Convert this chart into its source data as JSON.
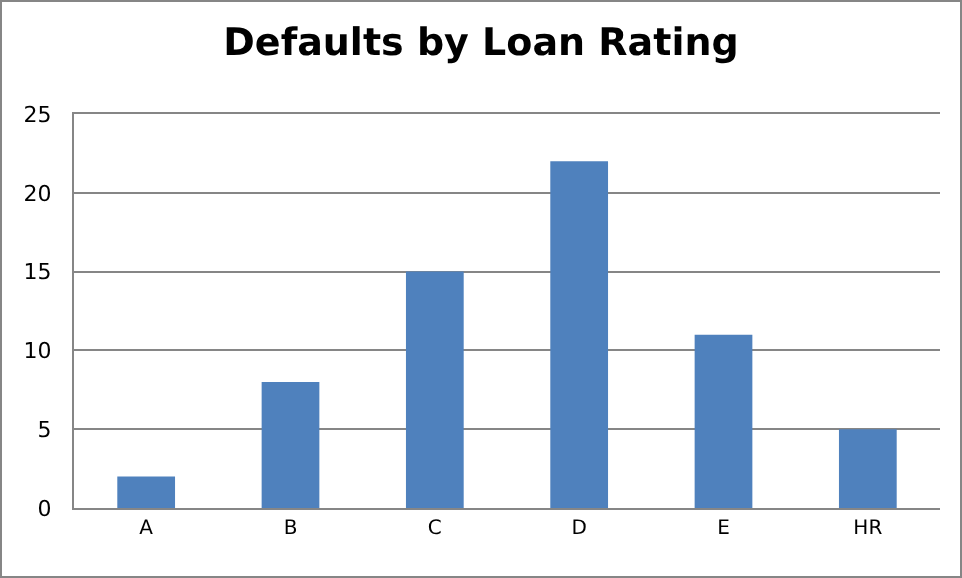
{
  "chart_data": {
    "type": "bar",
    "title": "Defaults by Loan Rating",
    "categories": [
      "A",
      "B",
      "C",
      "D",
      "E",
      "HR"
    ],
    "values": [
      2,
      8,
      15,
      22,
      11,
      5
    ],
    "color": "#4f81bd",
    "ylim": [
      0,
      25
    ],
    "yticks": [
      0,
      5,
      10,
      15,
      20,
      25
    ],
    "grid": "y"
  }
}
